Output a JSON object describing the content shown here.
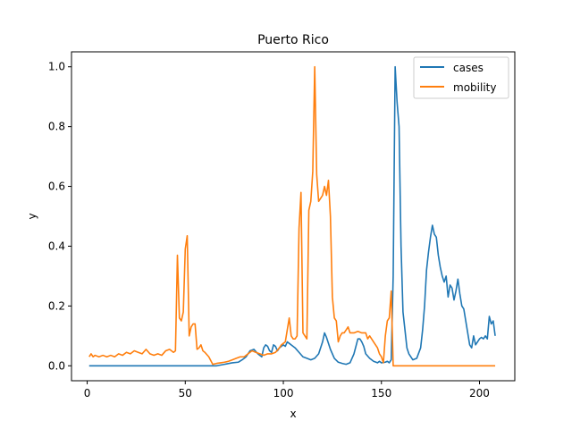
{
  "chart_data": {
    "type": "line",
    "title": "Puerto Rico",
    "xlabel": "x",
    "ylabel": "y",
    "xlim": [
      -8,
      218
    ],
    "ylim": [
      -0.05,
      1.05
    ],
    "xticks": [
      0,
      50,
      100,
      150,
      200
    ],
    "yticks": [
      0.0,
      0.2,
      0.4,
      0.6,
      0.8,
      1.0
    ],
    "ytick_labels": [
      "0.0",
      "0.2",
      "0.4",
      "0.6",
      "0.8",
      "1.0"
    ],
    "grid": false,
    "legend_position": "top-right",
    "series": [
      {
        "name": "cases",
        "color": "#1f77b4",
        "points": [
          [
            1,
            0
          ],
          [
            10,
            0
          ],
          [
            20,
            0
          ],
          [
            30,
            0
          ],
          [
            40,
            0
          ],
          [
            50,
            0
          ],
          [
            60,
            0
          ],
          [
            66,
            0
          ],
          [
            70,
            0.005
          ],
          [
            74,
            0.01
          ],
          [
            77,
            0.012
          ],
          [
            79,
            0.02
          ],
          [
            81,
            0.03
          ],
          [
            83,
            0.05
          ],
          [
            85,
            0.055
          ],
          [
            87,
            0.04
          ],
          [
            89,
            0.03
          ],
          [
            90,
            0.06
          ],
          [
            91,
            0.07
          ],
          [
            92,
            0.065
          ],
          [
            93,
            0.05
          ],
          [
            94,
            0.045
          ],
          [
            95,
            0.07
          ],
          [
            96,
            0.065
          ],
          [
            97,
            0.05
          ],
          [
            98,
            0.06
          ],
          [
            99,
            0.065
          ],
          [
            100,
            0.07
          ],
          [
            101,
            0.065
          ],
          [
            102,
            0.08
          ],
          [
            103,
            0.075
          ],
          [
            104,
            0.07
          ],
          [
            106,
            0.06
          ],
          [
            108,
            0.045
          ],
          [
            110,
            0.03
          ],
          [
            112,
            0.025
          ],
          [
            114,
            0.02
          ],
          [
            116,
            0.025
          ],
          [
            118,
            0.04
          ],
          [
            120,
            0.08
          ],
          [
            121,
            0.11
          ],
          [
            122,
            0.095
          ],
          [
            124,
            0.055
          ],
          [
            126,
            0.025
          ],
          [
            128,
            0.012
          ],
          [
            130,
            0.008
          ],
          [
            132,
            0.005
          ],
          [
            134,
            0.01
          ],
          [
            136,
            0.04
          ],
          [
            137,
            0.065
          ],
          [
            138,
            0.09
          ],
          [
            139,
            0.09
          ],
          [
            140,
            0.08
          ],
          [
            141,
            0.065
          ],
          [
            142,
            0.04
          ],
          [
            144,
            0.025
          ],
          [
            146,
            0.015
          ],
          [
            148,
            0.01
          ],
          [
            149,
            0.015
          ],
          [
            150,
            0.01
          ],
          [
            152,
            0.012
          ],
          [
            153,
            0.015
          ],
          [
            154,
            0.01
          ],
          [
            155,
            0.02
          ],
          [
            156,
            0.3
          ],
          [
            157,
            1.0
          ],
          [
            158,
            0.88
          ],
          [
            159,
            0.8
          ],
          [
            160,
            0.4
          ],
          [
            161,
            0.18
          ],
          [
            162,
            0.12
          ],
          [
            163,
            0.06
          ],
          [
            164,
            0.04
          ],
          [
            166,
            0.02
          ],
          [
            168,
            0.025
          ],
          [
            170,
            0.06
          ],
          [
            171,
            0.12
          ],
          [
            172,
            0.2
          ],
          [
            173,
            0.32
          ],
          [
            174,
            0.38
          ],
          [
            175,
            0.43
          ],
          [
            176,
            0.47
          ],
          [
            177,
            0.44
          ],
          [
            178,
            0.43
          ],
          [
            179,
            0.37
          ],
          [
            180,
            0.33
          ],
          [
            181,
            0.3
          ],
          [
            182,
            0.28
          ],
          [
            183,
            0.3
          ],
          [
            184,
            0.23
          ],
          [
            185,
            0.27
          ],
          [
            186,
            0.26
          ],
          [
            187,
            0.22
          ],
          [
            188,
            0.25
          ],
          [
            189,
            0.29
          ],
          [
            190,
            0.24
          ],
          [
            191,
            0.2
          ],
          [
            192,
            0.19
          ],
          [
            193,
            0.15
          ],
          [
            194,
            0.11
          ],
          [
            195,
            0.07
          ],
          [
            196,
            0.06
          ],
          [
            197,
            0.1
          ],
          [
            198,
            0.07
          ],
          [
            199,
            0.08
          ],
          [
            200,
            0.09
          ],
          [
            201,
            0.095
          ],
          [
            202,
            0.09
          ],
          [
            203,
            0.1
          ],
          [
            204,
            0.09
          ],
          [
            205,
            0.165
          ],
          [
            206,
            0.14
          ],
          [
            207,
            0.15
          ],
          [
            208,
            0.1
          ]
        ]
      },
      {
        "name": "mobility",
        "color": "#ff7f0e",
        "points": [
          [
            1,
            0.03
          ],
          [
            2,
            0.04
          ],
          [
            3,
            0.03
          ],
          [
            4,
            0.035
          ],
          [
            6,
            0.03
          ],
          [
            8,
            0.035
          ],
          [
            10,
            0.03
          ],
          [
            12,
            0.035
          ],
          [
            14,
            0.03
          ],
          [
            16,
            0.04
          ],
          [
            18,
            0.035
          ],
          [
            20,
            0.045
          ],
          [
            22,
            0.04
          ],
          [
            24,
            0.05
          ],
          [
            26,
            0.045
          ],
          [
            28,
            0.04
          ],
          [
            30,
            0.055
          ],
          [
            32,
            0.04
          ],
          [
            34,
            0.035
          ],
          [
            36,
            0.04
          ],
          [
            38,
            0.035
          ],
          [
            40,
            0.05
          ],
          [
            42,
            0.055
          ],
          [
            44,
            0.045
          ],
          [
            45,
            0.05
          ],
          [
            46,
            0.37
          ],
          [
            47,
            0.16
          ],
          [
            48,
            0.15
          ],
          [
            49,
            0.18
          ],
          [
            50,
            0.39
          ],
          [
            51,
            0.435
          ],
          [
            52,
            0.1
          ],
          [
            53,
            0.13
          ],
          [
            54,
            0.14
          ],
          [
            55,
            0.14
          ],
          [
            56,
            0.055
          ],
          [
            57,
            0.06
          ],
          [
            58,
            0.07
          ],
          [
            59,
            0.05
          ],
          [
            60,
            0.045
          ],
          [
            62,
            0.03
          ],
          [
            64,
            0.005
          ],
          [
            66,
            0.008
          ],
          [
            68,
            0.01
          ],
          [
            70,
            0.012
          ],
          [
            72,
            0.015
          ],
          [
            74,
            0.02
          ],
          [
            76,
            0.025
          ],
          [
            78,
            0.03
          ],
          [
            80,
            0.03
          ],
          [
            82,
            0.04
          ],
          [
            84,
            0.05
          ],
          [
            86,
            0.045
          ],
          [
            88,
            0.04
          ],
          [
            90,
            0.035
          ],
          [
            92,
            0.04
          ],
          [
            94,
            0.04
          ],
          [
            96,
            0.045
          ],
          [
            98,
            0.06
          ],
          [
            99,
            0.07
          ],
          [
            100,
            0.075
          ],
          [
            101,
            0.08
          ],
          [
            102,
            0.12
          ],
          [
            103,
            0.16
          ],
          [
            104,
            0.1
          ],
          [
            105,
            0.09
          ],
          [
            106,
            0.09
          ],
          [
            107,
            0.1
          ],
          [
            108,
            0.46
          ],
          [
            109,
            0.58
          ],
          [
            110,
            0.11
          ],
          [
            111,
            0.1
          ],
          [
            112,
            0.09
          ],
          [
            113,
            0.52
          ],
          [
            114,
            0.55
          ],
          [
            115,
            0.65
          ],
          [
            116,
            1.0
          ],
          [
            117,
            0.64
          ],
          [
            118,
            0.55
          ],
          [
            119,
            0.56
          ],
          [
            120,
            0.57
          ],
          [
            121,
            0.6
          ],
          [
            122,
            0.57
          ],
          [
            123,
            0.62
          ],
          [
            124,
            0.5
          ],
          [
            125,
            0.23
          ],
          [
            126,
            0.16
          ],
          [
            127,
            0.15
          ],
          [
            128,
            0.08
          ],
          [
            129,
            0.1
          ],
          [
            130,
            0.11
          ],
          [
            131,
            0.11
          ],
          [
            132,
            0.12
          ],
          [
            133,
            0.13
          ],
          [
            134,
            0.11
          ],
          [
            136,
            0.11
          ],
          [
            138,
            0.115
          ],
          [
            140,
            0.11
          ],
          [
            142,
            0.11
          ],
          [
            143,
            0.09
          ],
          [
            144,
            0.1
          ],
          [
            146,
            0.08
          ],
          [
            148,
            0.06
          ],
          [
            149,
            0.04
          ],
          [
            150,
            0.03
          ],
          [
            151,
            0.01
          ],
          [
            152,
            0.1
          ],
          [
            153,
            0.15
          ],
          [
            154,
            0.16
          ],
          [
            155,
            0.25
          ],
          [
            156,
            0.0
          ],
          [
            160,
            0.0
          ],
          [
            170,
            0.0
          ],
          [
            180,
            0.0
          ],
          [
            190,
            0.0
          ],
          [
            200,
            0.0
          ],
          [
            208,
            0.0
          ]
        ]
      }
    ]
  }
}
